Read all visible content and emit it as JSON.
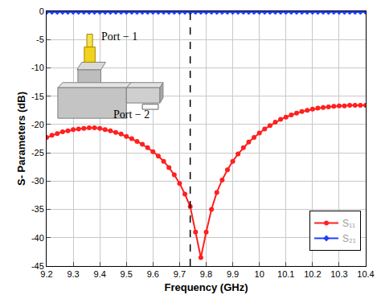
{
  "chart_data": {
    "type": "line",
    "x_label": "Frequency (GHz)",
    "y_label": "S- Parameters (dB)",
    "x": [
      9.2,
      9.22,
      9.24,
      9.26,
      9.28,
      9.3,
      9.32,
      9.34,
      9.36,
      9.38,
      9.4,
      9.42,
      9.44,
      9.46,
      9.48,
      9.5,
      9.52,
      9.54,
      9.56,
      9.58,
      9.6,
      9.62,
      9.64,
      9.66,
      9.68,
      9.7,
      9.72,
      9.74,
      9.76,
      9.78,
      9.8,
      9.82,
      9.84,
      9.86,
      9.88,
      9.9,
      9.92,
      9.94,
      9.96,
      9.98,
      10.0,
      10.02,
      10.04,
      10.06,
      10.08,
      10.1,
      10.12,
      10.14,
      10.16,
      10.18,
      10.2,
      10.22,
      10.24,
      10.26,
      10.28,
      10.3,
      10.32,
      10.34,
      10.36,
      10.38,
      10.4
    ],
    "series": [
      {
        "name": "S₁₁",
        "color": "#ff2020",
        "marker": "circle",
        "values": [
          -22.3,
          -21.9,
          -21.6,
          -21.3,
          -21.1,
          -20.9,
          -20.8,
          -20.7,
          -20.6,
          -20.6,
          -20.7,
          -20.9,
          -21.1,
          -21.4,
          -21.7,
          -22.1,
          -22.5,
          -23.0,
          -23.5,
          -24.1,
          -24.8,
          -25.6,
          -26.5,
          -27.6,
          -28.9,
          -30.4,
          -32.3,
          -34.5,
          -39.0,
          -43.5,
          -39.0,
          -35.0,
          -32.0,
          -29.8,
          -28.0,
          -26.5,
          -25.2,
          -24.1,
          -23.1,
          -22.3,
          -21.5,
          -20.8,
          -20.2,
          -19.6,
          -19.1,
          -18.7,
          -18.3,
          -18.0,
          -17.7,
          -17.5,
          -17.3,
          -17.1,
          -17.0,
          -16.9,
          -16.8,
          -16.7,
          -16.7,
          -16.6,
          -16.6,
          -16.6,
          -16.6
        ]
      },
      {
        "name": "S₂₁",
        "color": "#1f3fff",
        "marker": "diamond",
        "values": [
          -0.1,
          -0.1,
          -0.1,
          -0.1,
          -0.1,
          -0.1,
          -0.1,
          -0.1,
          -0.1,
          -0.1,
          -0.1,
          -0.1,
          -0.1,
          -0.1,
          -0.1,
          -0.1,
          -0.1,
          -0.1,
          -0.1,
          -0.1,
          -0.1,
          -0.1,
          -0.1,
          -0.1,
          -0.1,
          -0.1,
          -0.1,
          -0.1,
          -0.1,
          -0.1,
          -0.1,
          -0.1,
          -0.1,
          -0.1,
          -0.1,
          -0.1,
          -0.1,
          -0.1,
          -0.1,
          -0.1,
          -0.1,
          -0.1,
          -0.1,
          -0.1,
          -0.1,
          -0.1,
          -0.1,
          -0.1,
          -0.1,
          -0.1,
          -0.1,
          -0.1,
          -0.1,
          -0.1,
          -0.1,
          -0.1,
          -0.1,
          -0.1,
          -0.1,
          -0.1,
          -0.1
        ]
      }
    ],
    "xlim": [
      9.2,
      10.4
    ],
    "xticks": [
      9.2,
      9.3,
      9.4,
      9.5,
      9.6,
      9.7,
      9.8,
      9.9,
      10,
      10.1,
      10.2,
      10.3,
      10.4
    ],
    "ylim": [
      -45,
      0
    ],
    "yticks": [
      -45,
      -40,
      -35,
      -30,
      -25,
      -20,
      -15,
      -10,
      -5,
      0
    ],
    "vline_x": 9.74,
    "annotations": [
      "Port − 1",
      "Port − 2"
    ],
    "grid": true,
    "legend": "lower right"
  }
}
